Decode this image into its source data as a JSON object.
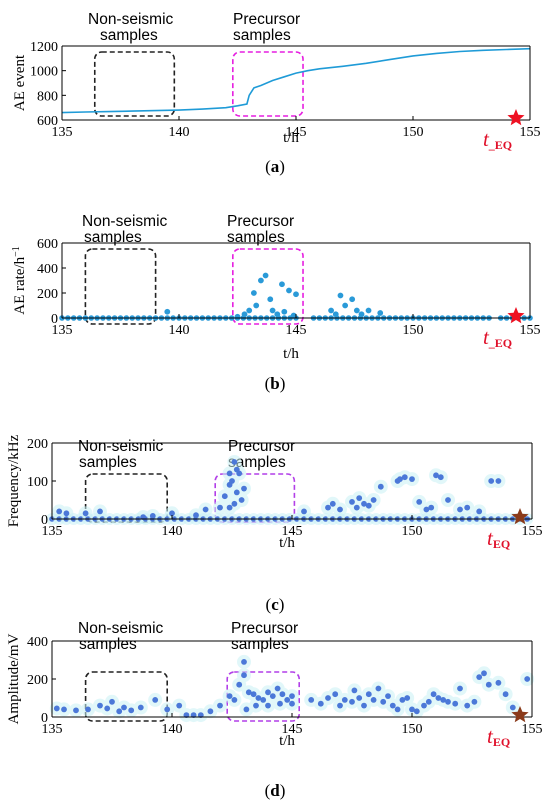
{
  "chart_data": [
    {
      "panel": "a",
      "type": "line",
      "ylabel": "AE event",
      "xlabel": "t/h",
      "xlim": [
        135,
        155
      ],
      "ylim": [
        600,
        1200
      ],
      "xticks": [
        135,
        140,
        145,
        150,
        155
      ],
      "yticks": [
        600,
        800,
        1000,
        1200
      ],
      "series": [
        {
          "x": [
            135,
            136,
            137,
            138,
            139,
            140,
            141,
            142,
            142.5,
            142.9,
            143.0,
            143.2,
            143.5,
            144,
            144.5,
            145,
            145.5,
            146,
            147,
            148,
            149,
            150,
            151,
            152,
            153,
            154,
            155
          ],
          "y": [
            660,
            665,
            668,
            672,
            676,
            680,
            688,
            700,
            715,
            730,
            800,
            860,
            880,
            920,
            950,
            980,
            1000,
            1015,
            1035,
            1060,
            1090,
            1120,
            1140,
            1155,
            1165,
            1172,
            1178
          ]
        }
      ],
      "annotations": [
        {
          "text": [
            "Non-seismic",
            "samples"
          ],
          "box": [
            136.4,
            139.8
          ],
          "color": "#222222"
        },
        {
          "text": [
            "Precursor",
            "samples"
          ],
          "box": [
            142.3,
            145.3
          ],
          "color": "#e61fe0"
        }
      ],
      "t_eq": {
        "x": 154.4,
        "main": "t",
        "sub": "_EQ"
      }
    },
    {
      "panel": "b",
      "type": "scatter",
      "ylabel": "AE  rate/h",
      "ylabel_sup": "−1",
      "xlabel": "t/h",
      "xlim": [
        135,
        155
      ],
      "ylim": [
        0,
        600
      ],
      "xticks": [
        135,
        140,
        145,
        150,
        155
      ],
      "yticks": [
        0,
        200,
        400,
        600
      ],
      "baseline": {
        "from": 135,
        "to": 155,
        "step": 0.25,
        "gaps": [
          [
            145.1,
            145.7
          ],
          [
            153.3,
            153.6
          ]
        ]
      },
      "points": [
        [
          139.5,
          50
        ],
        [
          142.5,
          10
        ],
        [
          142.8,
          30
        ],
        [
          143.0,
          60
        ],
        [
          143.2,
          200
        ],
        [
          143.3,
          100
        ],
        [
          143.5,
          300
        ],
        [
          143.7,
          340
        ],
        [
          143.9,
          150
        ],
        [
          144.0,
          60
        ],
        [
          144.2,
          30
        ],
        [
          144.4,
          270
        ],
        [
          144.5,
          50
        ],
        [
          144.7,
          220
        ],
        [
          144.9,
          20
        ],
        [
          145.0,
          190
        ],
        [
          146.5,
          60
        ],
        [
          146.7,
          30
        ],
        [
          146.9,
          180
        ],
        [
          147.1,
          100
        ],
        [
          147.4,
          150
        ],
        [
          147.6,
          60
        ],
        [
          147.8,
          30
        ],
        [
          148.1,
          60
        ],
        [
          148.6,
          40
        ]
      ],
      "annotations": [
        {
          "text": [
            "Non-seismic",
            "samples"
          ],
          "box": [
            136.0,
            139.0
          ],
          "color": "#222222"
        },
        {
          "text": [
            "Precursor",
            "samples"
          ],
          "box": [
            142.3,
            145.3
          ],
          "color": "#e61fe0"
        }
      ],
      "t_eq": {
        "x": 154.4,
        "main": "t",
        "sub": "_EQ"
      }
    },
    {
      "panel": "c",
      "type": "scatter",
      "ylabel": "Frequency/kHz",
      "xlabel": "t/h",
      "xlim": [
        135,
        155
      ],
      "ylim": [
        0,
        200
      ],
      "xticks": [
        135,
        140,
        145,
        150,
        155
      ],
      "yticks": [
        0,
        100,
        200
      ],
      "baseline": {
        "from": 135,
        "to": 155,
        "step": 0.3,
        "gaps": []
      },
      "points": [
        [
          135.3,
          20
        ],
        [
          135.6,
          15
        ],
        [
          136.4,
          15
        ],
        [
          137.0,
          20
        ],
        [
          138.8,
          5
        ],
        [
          139.2,
          8
        ],
        [
          140.0,
          15
        ],
        [
          141.0,
          10
        ],
        [
          141.4,
          25
        ],
        [
          142.0,
          30
        ],
        [
          142.2,
          60
        ],
        [
          142.4,
          90
        ],
        [
          142.4,
          120
        ],
        [
          142.6,
          150
        ],
        [
          142.5,
          100
        ],
        [
          142.7,
          70
        ],
        [
          142.8,
          120
        ],
        [
          142.6,
          40
        ],
        [
          142.9,
          50
        ],
        [
          143.0,
          80
        ],
        [
          142.4,
          30
        ],
        [
          142.7,
          130
        ],
        [
          145.5,
          20
        ],
        [
          146.5,
          30
        ],
        [
          146.7,
          40
        ],
        [
          147.0,
          25
        ],
        [
          147.5,
          45
        ],
        [
          147.7,
          30
        ],
        [
          147.8,
          55
        ],
        [
          148.0,
          40
        ],
        [
          148.2,
          35
        ],
        [
          148.4,
          50
        ],
        [
          148.7,
          85
        ],
        [
          149.4,
          100
        ],
        [
          149.5,
          105
        ],
        [
          149.7,
          110
        ],
        [
          150.0,
          105
        ],
        [
          150.3,
          45
        ],
        [
          150.6,
          25
        ],
        [
          150.8,
          30
        ],
        [
          151.0,
          115
        ],
        [
          151.2,
          110
        ],
        [
          151.5,
          50
        ],
        [
          152.0,
          25
        ],
        [
          152.3,
          30
        ],
        [
          152.8,
          20
        ],
        [
          153.3,
          100
        ],
        [
          153.6,
          100
        ]
      ],
      "annotations": [
        {
          "text": [
            "Non-seismic",
            "samples"
          ],
          "box": [
            136.4,
            139.8
          ],
          "color": "#222222"
        },
        {
          "text": [
            "Precursor",
            "samples"
          ],
          "box": [
            141.8,
            145.1
          ],
          "color": "#b23fe8"
        }
      ],
      "t_eq": {
        "x": 154.5,
        "main": "t",
        "sub": "EQ"
      }
    },
    {
      "panel": "d",
      "type": "scatter",
      "ylabel": "Amplitude/mV",
      "xlabel": "t/h",
      "xlim": [
        135,
        155
      ],
      "ylim": [
        0,
        400
      ],
      "xticks": [
        135,
        140,
        145,
        150,
        155
      ],
      "yticks": [
        0,
        200,
        400
      ],
      "points": [
        [
          135.2,
          45
        ],
        [
          135.5,
          40
        ],
        [
          136.0,
          35
        ],
        [
          136.5,
          40
        ],
        [
          137.0,
          60
        ],
        [
          137.3,
          45
        ],
        [
          137.5,
          80
        ],
        [
          137.8,
          30
        ],
        [
          138.0,
          50
        ],
        [
          138.3,
          35
        ],
        [
          138.7,
          50
        ],
        [
          139.3,
          90
        ],
        [
          139.8,
          40
        ],
        [
          140.3,
          60
        ],
        [
          140.6,
          10
        ],
        [
          140.9,
          10
        ],
        [
          141.2,
          10
        ],
        [
          141.6,
          30
        ],
        [
          142.0,
          60
        ],
        [
          142.4,
          110
        ],
        [
          142.6,
          90
        ],
        [
          142.8,
          170
        ],
        [
          143.0,
          290
        ],
        [
          143.0,
          220
        ],
        [
          143.2,
          130
        ],
        [
          143.4,
          120
        ],
        [
          143.6,
          100
        ],
        [
          143.8,
          90
        ],
        [
          144.0,
          130
        ],
        [
          144.2,
          110
        ],
        [
          144.4,
          150
        ],
        [
          144.6,
          120
        ],
        [
          144.8,
          90
        ],
        [
          145.0,
          110
        ],
        [
          145.0,
          70
        ],
        [
          143.1,
          40
        ],
        [
          143.5,
          60
        ],
        [
          144.0,
          60
        ],
        [
          144.5,
          70
        ],
        [
          145.8,
          90
        ],
        [
          146.2,
          70
        ],
        [
          146.5,
          100
        ],
        [
          146.8,
          120
        ],
        [
          147.0,
          60
        ],
        [
          147.2,
          90
        ],
        [
          147.5,
          80
        ],
        [
          147.6,
          140
        ],
        [
          147.8,
          100
        ],
        [
          148.0,
          60
        ],
        [
          148.2,
          120
        ],
        [
          148.4,
          90
        ],
        [
          148.6,
          150
        ],
        [
          148.8,
          80
        ],
        [
          149.0,
          110
        ],
        [
          149.2,
          60
        ],
        [
          149.4,
          40
        ],
        [
          149.6,
          90
        ],
        [
          149.8,
          100
        ],
        [
          150.0,
          40
        ],
        [
          150.2,
          30
        ],
        [
          150.5,
          60
        ],
        [
          150.7,
          80
        ],
        [
          150.9,
          120
        ],
        [
          151.1,
          100
        ],
        [
          151.3,
          90
        ],
        [
          151.5,
          80
        ],
        [
          151.8,
          70
        ],
        [
          152.0,
          150
        ],
        [
          152.3,
          60
        ],
        [
          152.6,
          80
        ],
        [
          152.8,
          210
        ],
        [
          153.0,
          230
        ],
        [
          153.2,
          170
        ],
        [
          153.6,
          180
        ],
        [
          153.9,
          120
        ],
        [
          154.2,
          50
        ],
        [
          154.8,
          200
        ]
      ],
      "annotations": [
        {
          "text": [
            "Non-seismic",
            "samples"
          ],
          "box": [
            136.4,
            139.8
          ],
          "color": "#222222"
        },
        {
          "text": [
            "Precursor",
            "samples"
          ],
          "box": [
            142.3,
            145.3
          ],
          "color": "#b23fe8"
        }
      ],
      "t_eq": {
        "x": 154.5,
        "main": "t",
        "sub": "EQ"
      }
    }
  ],
  "captions": [
    "a",
    "b",
    "c",
    "d"
  ],
  "colors": {
    "line": "#1f9bd7",
    "dot_b": "#2a9ad8",
    "dot_cd": "#4b78d8",
    "glow": "#c9f1f5",
    "glow_pink": "#fbd6ea",
    "star_red": "#ee1122",
    "star_brown": "#8a3a1a",
    "t_eq": "#e0102a"
  }
}
